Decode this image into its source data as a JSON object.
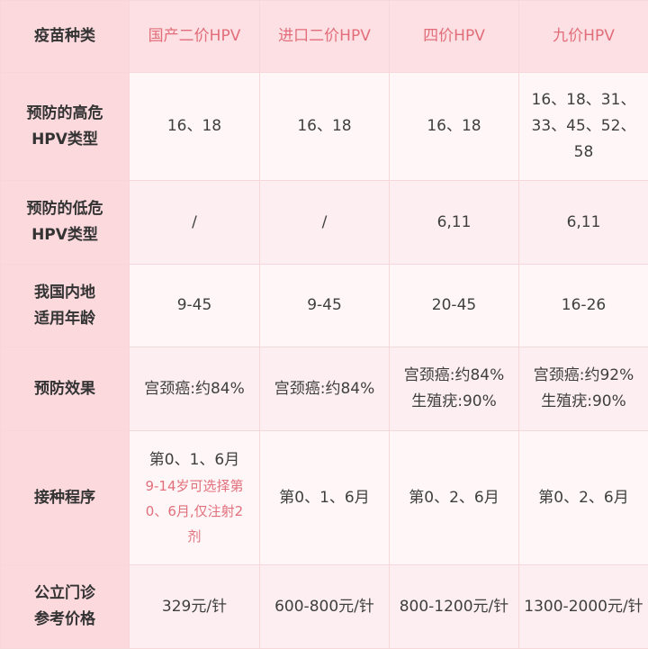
{
  "header": {
    "label": "疫苗种类",
    "columns": [
      "国产二价HPV",
      "进口二价HPV",
      "四价HPV",
      "九价HPV"
    ]
  },
  "rows": [
    {
      "label": "预防的高危HPV类型",
      "values": [
        "16、18",
        "16、18",
        "16、18",
        "16、18、31、33、45、52、58"
      ]
    },
    {
      "label": "预防的低危HPV类型",
      "values": [
        "/",
        "/",
        "6,11",
        "6,11"
      ]
    },
    {
      "label": "我国内地适用年龄",
      "values": [
        "9-45",
        "9-45",
        "20-45",
        "16-26"
      ]
    },
    {
      "label": "预防效果",
      "values": [
        "宫颈癌:约84%",
        "宫颈癌:约84%",
        "宫颈癌:约84%生殖疣:90%",
        "宫颈癌:约92%生殖疣:90%"
      ]
    },
    {
      "label": "接种程序",
      "values": [
        "第0、1、6月",
        "第0、1、6月",
        "第0、2、6月",
        "第0、2、6月"
      ],
      "note": "9-14岁可选择第0、6月,仅注射2剂"
    },
    {
      "label": "公立门诊参考价格",
      "values": [
        "329元/针",
        "600-800元/针",
        "800-1200元/针",
        "1300-2000元/针"
      ]
    }
  ],
  "colors": {
    "header_text": "#e26d7a",
    "note_text": "#e2707c",
    "row_head_bg": "#fbd9dd"
  }
}
